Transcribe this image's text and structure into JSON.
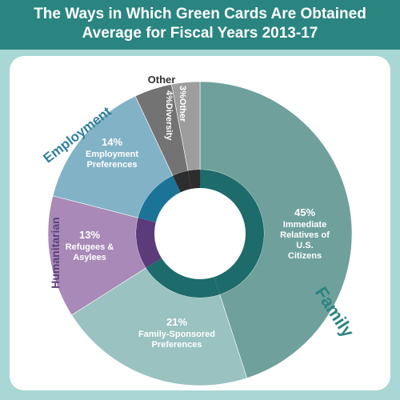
{
  "header": {
    "title_line1": "The Ways in Which Green Cards Are Obtained",
    "title_line2": "Average for Fiscal Years 2013-17"
  },
  "colors": {
    "frame": "#a8d7d6",
    "header": "#2a8580",
    "inner_ring": "#1d6b6a",
    "family_label": "#2a8580",
    "employment_label": "#2f7f9e",
    "humanitarian_label": "#5c3f78",
    "other_label": "#333333"
  },
  "chart_data": {
    "type": "pie",
    "title": "The Ways in Which Green Cards Are Obtained Average for Fiscal Years 2013-17",
    "slices": [
      {
        "pct_label": "45%",
        "label_lines": [
          "Immediate",
          "Relatives of",
          "U.S.",
          "Citizens"
        ],
        "value": 45,
        "color": "#6fa09c",
        "inner_color": "#1d6b6a",
        "group": "family"
      },
      {
        "pct_label": "21%",
        "label_lines": [
          "Family-Sponsored",
          "Preferences"
        ],
        "value": 21,
        "color": "#99c2c0",
        "inner_color": "#1d6b6a",
        "group": "family"
      },
      {
        "pct_label": "13%",
        "label_lines": [
          "Refugees &",
          "Asylees"
        ],
        "value": 13,
        "color": "#a889b7",
        "inner_color": "#5b3b79",
        "group": "humanitarian"
      },
      {
        "pct_label": "14%",
        "label_lines": [
          "Employment",
          "Preferences"
        ],
        "value": 14,
        "color": "#82b2c6",
        "inner_color": "#1b7398",
        "group": "employment"
      },
      {
        "pct_label": "4%",
        "label_lines": [
          "Diversity"
        ],
        "value": 4,
        "color": "#737373",
        "inner_color": "#2d2d2d",
        "group": "other"
      },
      {
        "pct_label": "3%",
        "label_lines": [
          "Other"
        ],
        "value": 3,
        "color": "#9d9d9d",
        "inner_color": "#2d2d2d",
        "group": "other"
      }
    ],
    "groups": [
      {
        "key": "family",
        "label": "Family"
      },
      {
        "key": "humanitarian",
        "label": "Humanitarian"
      },
      {
        "key": "employment",
        "label": "Employment"
      },
      {
        "key": "other",
        "label": "Other"
      }
    ]
  }
}
